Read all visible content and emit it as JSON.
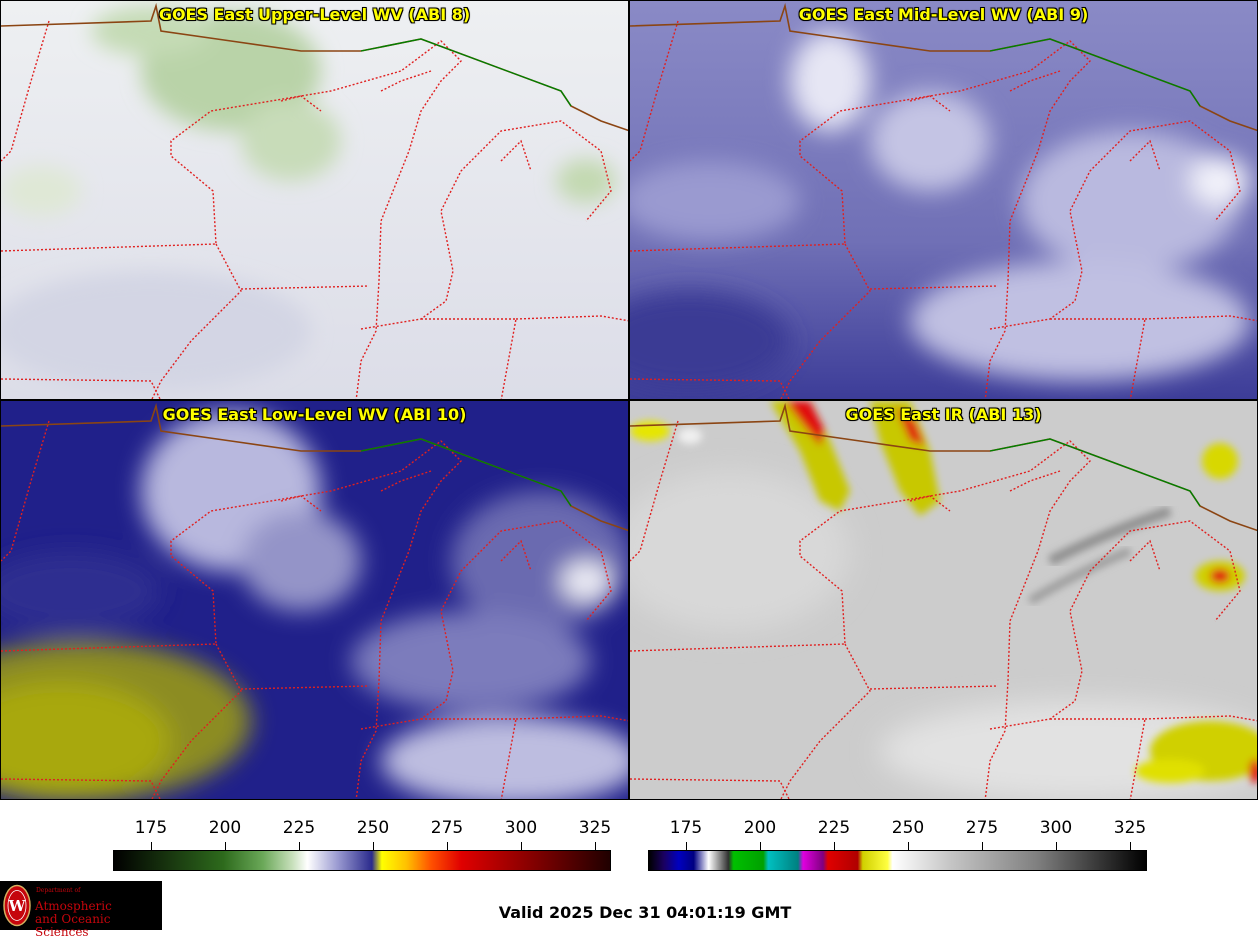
{
  "panels": [
    {
      "title": "GOES East Upper-Level WV (ABI 8)",
      "background": "#e6e8ef"
    },
    {
      "title": "GOES East Mid-Level WV (ABI 9)",
      "background": "#7474b8"
    },
    {
      "title": "GOES East Low-Level WV (ABI 10)",
      "background": "#2a2a8c"
    },
    {
      "title": "GOES East IR (ABI 13)",
      "background": "#cfcfcf"
    }
  ],
  "colorbars": [
    {
      "name": "water-vapor",
      "ticks": [
        "175",
        "200",
        "225",
        "250",
        "275",
        "300",
        "325"
      ]
    },
    {
      "name": "infrared",
      "ticks": [
        "175",
        "200",
        "225",
        "250",
        "275",
        "300",
        "325"
      ]
    }
  ],
  "logo": {
    "line1": "Department of",
    "line2": "Atmospheric",
    "line3": "and Oceanic Sciences"
  },
  "valid_time": "Valid 2025 Dec 31 04:01:19 GMT",
  "colors": {
    "state_borders": "#e02020",
    "intl_border": "#008000",
    "coast": "#8b4513",
    "title_text": "#ffff00"
  }
}
